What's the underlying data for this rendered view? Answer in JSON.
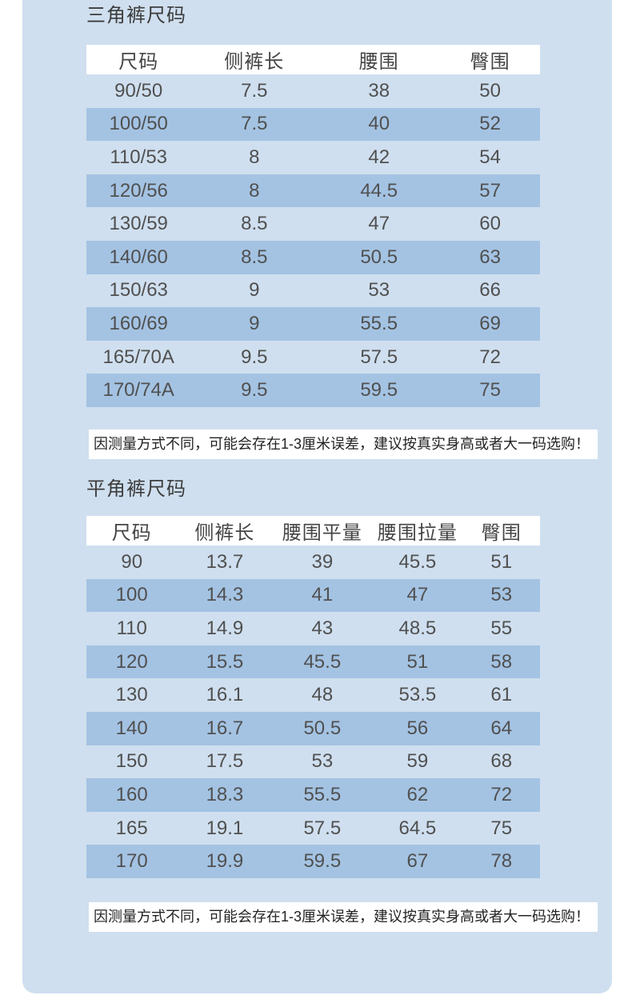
{
  "colors": {
    "panel_bg": "#cfdfef",
    "stripe_dark": "#a4c3e3",
    "header_row_bg": "#ffffff",
    "text": "#505050"
  },
  "chart_data": [
    {
      "type": "table",
      "title": "三角裤尺码",
      "headers": [
        "尺码",
        "侧裤长",
        "腰围",
        "臀围"
      ],
      "rows": [
        [
          "90/50",
          "7.5",
          "38",
          "50"
        ],
        [
          "100/50",
          "7.5",
          "40",
          "52"
        ],
        [
          "110/53",
          "8",
          "42",
          "54"
        ],
        [
          "120/56",
          "8",
          "44.5",
          "57"
        ],
        [
          "130/59",
          "8.5",
          "47",
          "60"
        ],
        [
          "140/60",
          "8.5",
          "50.5",
          "63"
        ],
        [
          "150/63",
          "9",
          "53",
          "66"
        ],
        [
          "160/69",
          "9",
          "55.5",
          "69"
        ],
        [
          "165/70A",
          "9.5",
          "57.5",
          "72"
        ],
        [
          "170/74A",
          "9.5",
          "59.5",
          "75"
        ]
      ],
      "note": "因测量方式不同，可能会存在1-3厘米误差，建议按真实身高或者大一码选购！"
    },
    {
      "type": "table",
      "title": "平角裤尺码",
      "headers": [
        "尺码",
        "侧裤长",
        "腰围平量",
        "腰围拉量",
        "臀围"
      ],
      "rows": [
        [
          "90",
          "13.7",
          "39",
          "45.5",
          "51"
        ],
        [
          "100",
          "14.3",
          "41",
          "47",
          "53"
        ],
        [
          "110",
          "14.9",
          "43",
          "48.5",
          "55"
        ],
        [
          "120",
          "15.5",
          "45.5",
          "51",
          "58"
        ],
        [
          "130",
          "16.1",
          "48",
          "53.5",
          "61"
        ],
        [
          "140",
          "16.7",
          "50.5",
          "56",
          "64"
        ],
        [
          "150",
          "17.5",
          "53",
          "59",
          "68"
        ],
        [
          "160",
          "18.3",
          "55.5",
          "62",
          "72"
        ],
        [
          "165",
          "19.1",
          "57.5",
          "64.5",
          "75"
        ],
        [
          "170",
          "19.9",
          "59.5",
          "67",
          "78"
        ]
      ],
      "note": "因测量方式不同，可能会存在1-3厘米误差，建议按真实身高或者大一码选购！"
    }
  ]
}
